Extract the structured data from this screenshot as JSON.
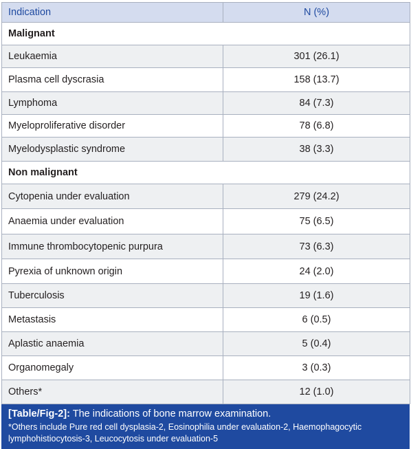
{
  "header": {
    "col1": "Indication",
    "col2": "N (%)"
  },
  "groups": [
    {
      "title": "Malignant",
      "rows": [
        {
          "label": "Leukaemia",
          "value": "301 (26.1)"
        },
        {
          "label": "Plasma cell dyscrasia",
          "value": "158 (13.7)"
        },
        {
          "label": "Lymphoma",
          "value": "84 (7.3)"
        },
        {
          "label": "Myeloproliferative disorder",
          "value": "78 (6.8)"
        },
        {
          "label": "Myelodysplastic syndrome",
          "value": "38 (3.3)"
        }
      ]
    },
    {
      "title": "Non malignant",
      "rows": [
        {
          "label": "Cytopenia under evaluation",
          "value": "279 (24.2)"
        },
        {
          "label": "Anaemia under evaluation",
          "value": "75 (6.5)"
        },
        {
          "label": "Immune thrombocytopenic purpura",
          "value": "73 (6.3)"
        },
        {
          "label": "Pyrexia of unknown origin",
          "value": "24 (2.0)"
        },
        {
          "label": "Tuberculosis",
          "value": "19 (1.6)"
        },
        {
          "label": "Metastasis",
          "value": "6 (0.5)"
        },
        {
          "label": "Aplastic anaemia",
          "value": "5 (0.4)"
        },
        {
          "label": "Organomegaly",
          "value": "3 (0.3)"
        },
        {
          "label": "Others*",
          "value": "12 (1.0)"
        }
      ]
    }
  ],
  "caption": {
    "label": "[Table/Fig-2]:",
    "text": " The indications of bone marrow examination.",
    "note": "*Others include Pure red cell dysplasia-2, Eosinophilia under evaluation-2, Haemophagocytic lymphohistiocytosis-3, Leucocytosis under evaluation-5"
  }
}
